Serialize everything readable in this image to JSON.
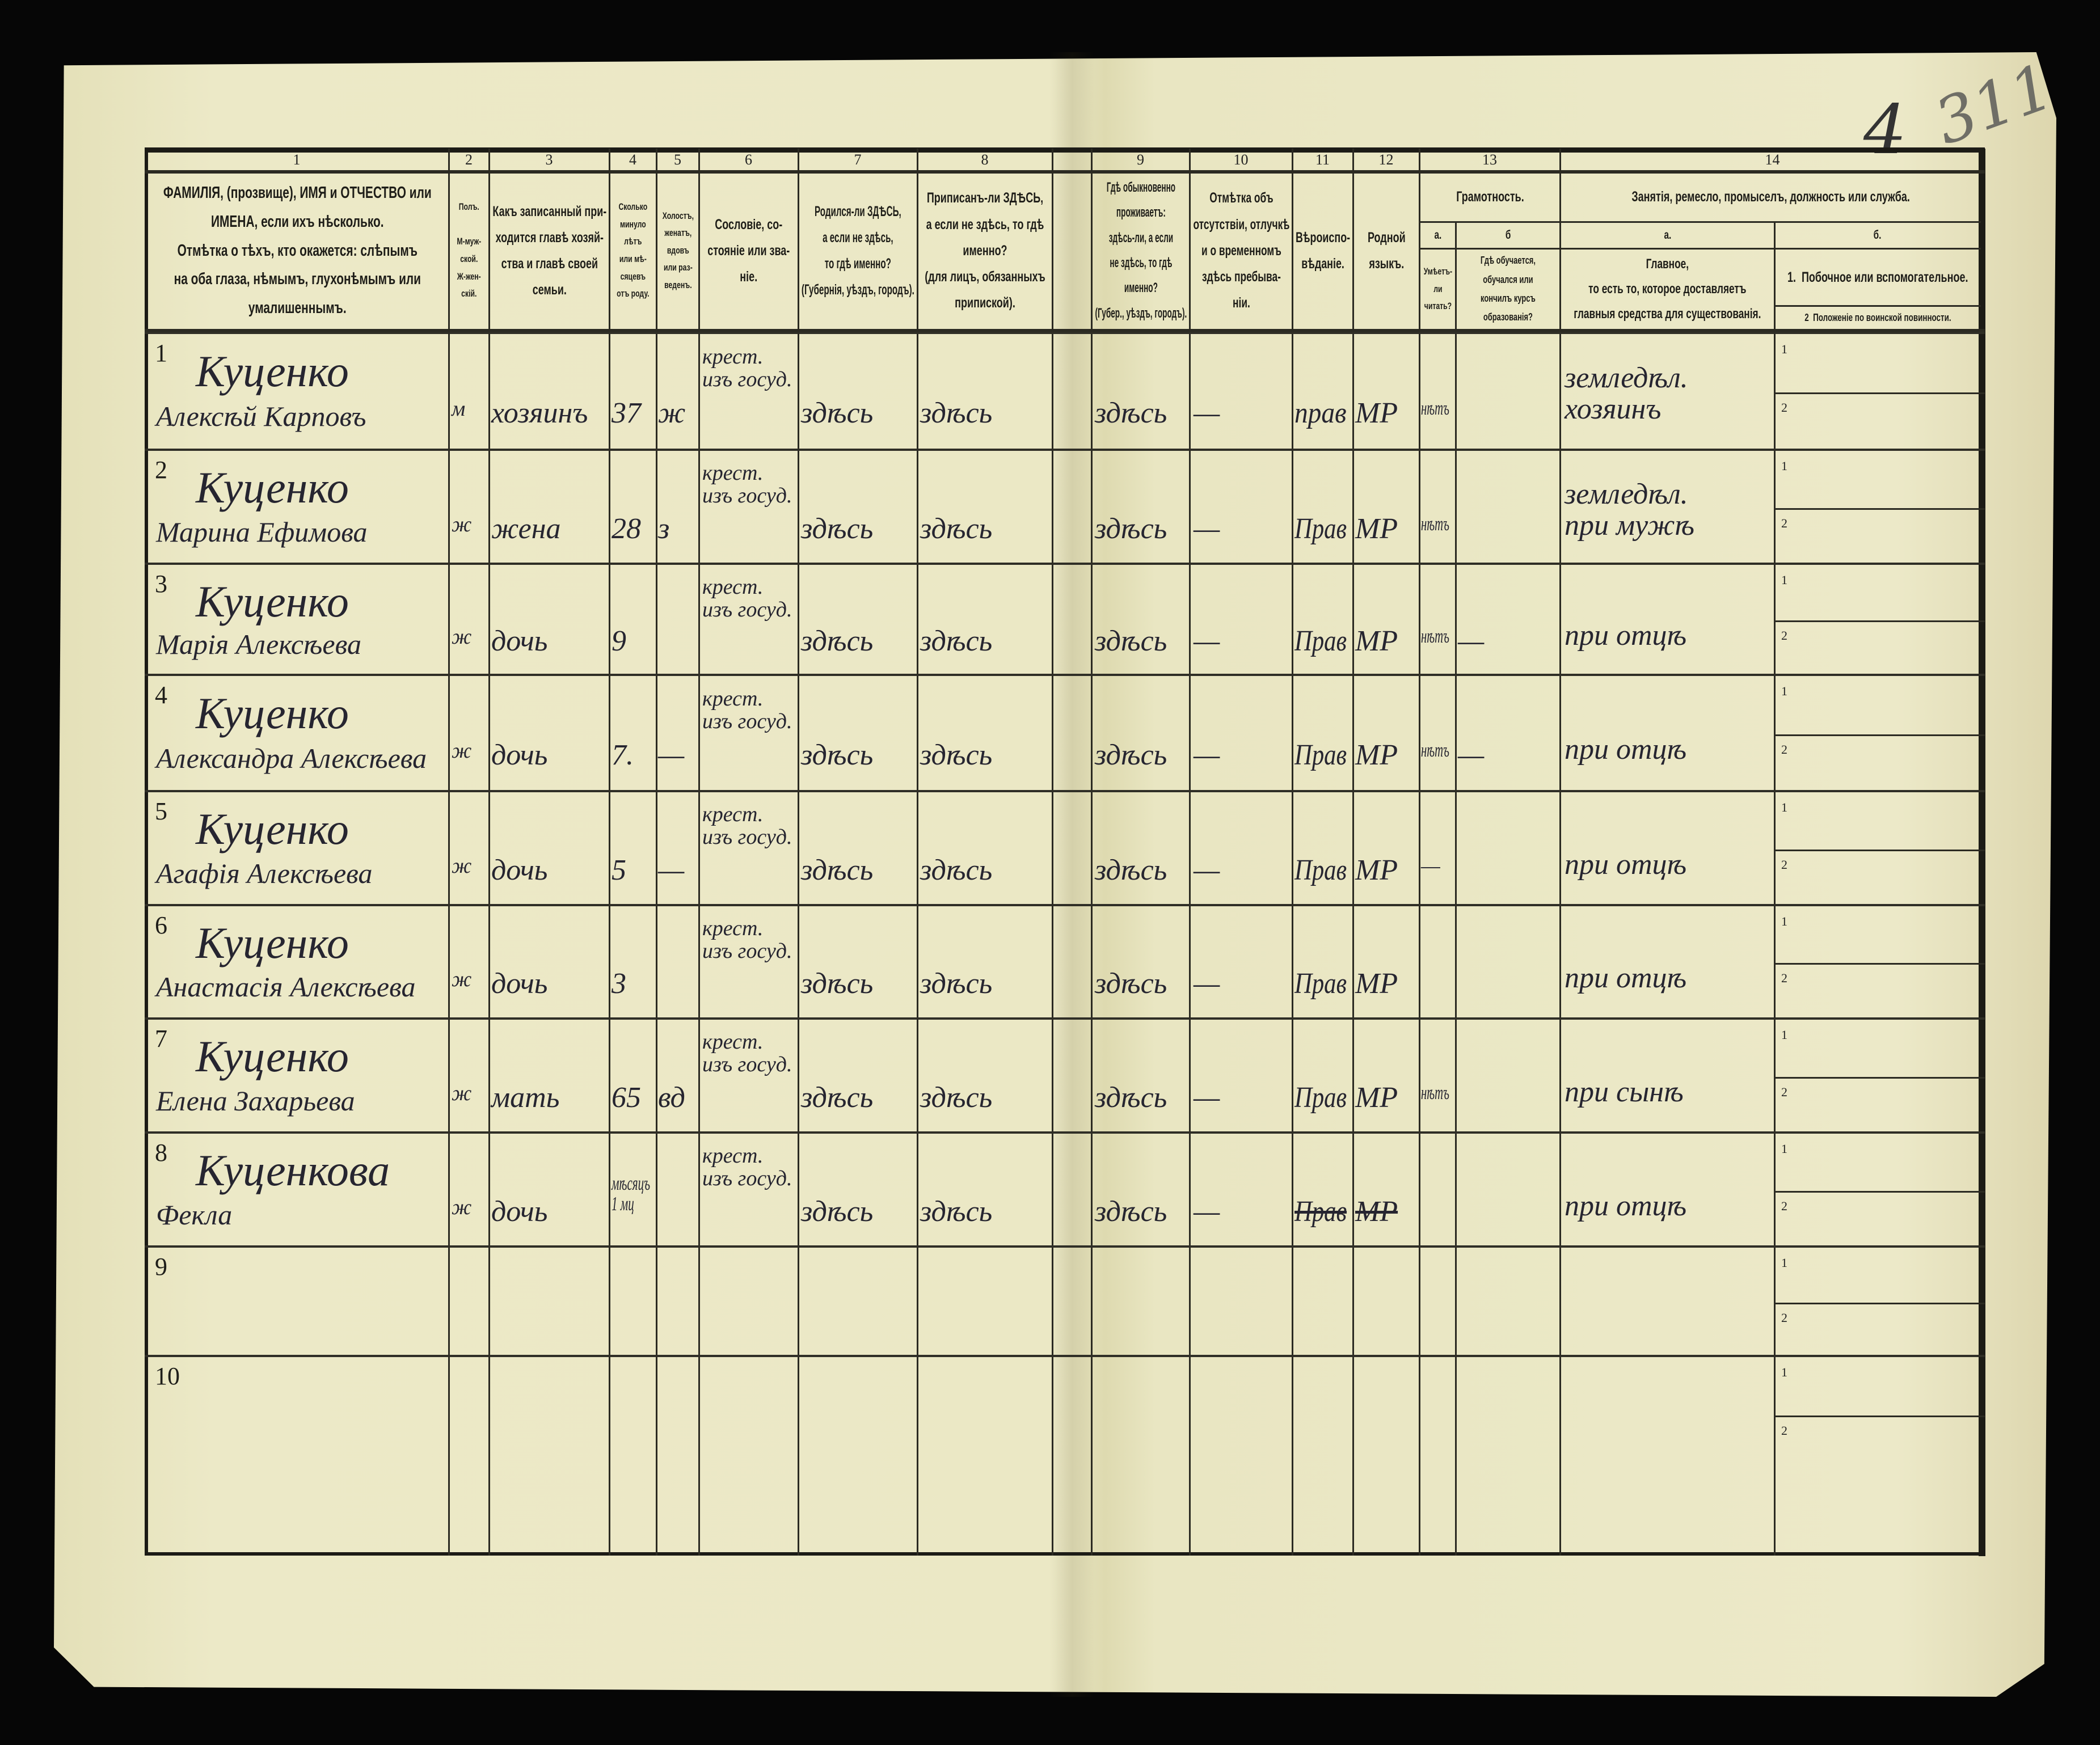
{
  "marks": {
    "sheet_no": "4",
    "archive_no": "311"
  },
  "colors": {
    "paper": "#ebe8c5",
    "ink_print": "#1e1d18",
    "ink_hand": "#262530",
    "background": "#060606"
  },
  "column_numbers": [
    "1",
    "2",
    "3",
    "4",
    "5",
    "6",
    "7",
    "8",
    "9",
    "10",
    "11",
    "12",
    "13",
    "14"
  ],
  "headers": {
    "c1": "ФАМИЛІЯ, (прозвище), ИМЯ и ОТЧЕСТВО или\nИМЕНА, если ихъ нѣсколько.\nОтмѣтка о тѣхъ, кто окажется: слѣпымъ\nна оба глаза, нѣмымъ, глухонѣмымъ или\nумалишеннымъ.",
    "c2": "Полъ.\n\nМ-муж-\nской.\nЖ-жен-\nскій.",
    "c3": "Какъ записанный при-\nходится главѣ хозяй-\nства и главѣ своей\nсемьи.",
    "c4": "Сколько\nминуло\nлѣтъ\nили мѣ-\nсяцевъ\nотъ роду.",
    "c5": "Холостъ,\nженатъ,\nвдовъ\nили раз-\nведенъ.",
    "c6": "Сословіе, со-\nстояніе или зва-\nніе.",
    "c7": "Родился-ли ЗДѢСЬ,\nа если не здѣсь,\nто гдѣ именно?\n(Губернія, уѣздъ, городъ).",
    "c8": "Приписанъ-ли ЗДѢСЬ,\nа если не здѣсь, то гдѣ\nименно?\n(для лицъ, обязанныхъ\nприпиской).",
    "c9": "Гдѣ обыкновенно\nпроживаетъ:\nздѣсь-ли, а если\nне здѣсь, то гдѣ\nименно?\n(Губер., уѣздъ, городъ).",
    "c10": "Отмѣтка объ\nотсутствіи, отлучкѣ\nи о временномъ\nздѣсь пребыва-\nніи.",
    "c11": "Вѣроиспо-\nвѣданіе.",
    "c12": "Родной\nязыкъ.",
    "c13": "Грамотность.",
    "c13a_letter": "а.",
    "c13b_letter": "б",
    "c13a": "Умѣетъ-\nли\nчитать?",
    "c13b": "Гдѣ обучается,\nобучался или\nкончилъ курсъ\nобразованія?",
    "c14": "Занятія, ремесло, промыселъ, должность или служба.",
    "c14a_letter": "а.",
    "c14b_letter": "б.",
    "c14a": "Главное,\nто есть то, которое доставляетъ\nглавныя средства для существованія.",
    "c14b1": "1.  Побочное или вспомогательное.",
    "c14b2": "2  Положеніе по воинской повинности."
  },
  "sub_labels": [
    "1",
    "2"
  ],
  "rows": [
    {
      "num": "1",
      "surname": "Куценко",
      "given": "Алексѣй Карповъ",
      "sex": "м",
      "relation": "хозяинъ",
      "age": "37",
      "marital": "ж",
      "estate": "крест.\nизъ госуд.",
      "born": "здѣсь",
      "registered": "здѣсь",
      "residence": "здѣсь",
      "absence": "—",
      "religion": "прав",
      "language": "МР",
      "literate": "нѣтъ",
      "school": "",
      "occupation": "земледѣл.\nхозяинъ"
    },
    {
      "num": "2",
      "surname": "Куценко",
      "given": "Марина Ефимова",
      "sex": "ж",
      "relation": "жена",
      "age": "28",
      "marital": "з",
      "estate": "крест.\nизъ госуд.",
      "born": "здѣсь",
      "registered": "здѣсь",
      "residence": "здѣсь",
      "absence": "—",
      "religion": "Прав",
      "language": "МР",
      "literate": "нѣтъ",
      "school": "",
      "occupation": "земледѣл.\nпри мужѣ"
    },
    {
      "num": "3",
      "surname": "Куценко",
      "given": "Марія Алексѣева",
      "sex": "ж",
      "relation": "дочь",
      "age": "9",
      "marital": "",
      "estate": "крест.\nизъ госуд.",
      "born": "здѣсь",
      "registered": "здѣсь",
      "residence": "здѣсь",
      "absence": "—",
      "religion": "Прав",
      "language": "МР",
      "literate": "нѣтъ",
      "school": "—",
      "occupation": "при отцѣ"
    },
    {
      "num": "4",
      "surname": "Куценко",
      "given": "Александра Алексѣева",
      "sex": "ж",
      "relation": "дочь",
      "age": "7.",
      "marital": "—",
      "estate": "крест.\nизъ госуд.",
      "born": "здѣсь",
      "registered": "здѣсь",
      "residence": "здѣсь",
      "absence": "—",
      "religion": "Прав",
      "language": "МР",
      "literate": "нѣтъ",
      "school": "—",
      "occupation": "при отцѣ"
    },
    {
      "num": "5",
      "surname": "Куценко",
      "given": "Агафія Алексѣева",
      "sex": "ж",
      "relation": "дочь",
      "age": "5",
      "marital": "—",
      "estate": "крест.\nизъ госуд.",
      "born": "здѣсь",
      "registered": "здѣсь",
      "residence": "здѣсь",
      "absence": "—",
      "religion": "Прав",
      "language": "МР",
      "literate": "—",
      "school": "",
      "occupation": "при отцѣ"
    },
    {
      "num": "6",
      "surname": "Куценко",
      "given": "Анастасія Алексѣева",
      "sex": "ж",
      "relation": "дочь",
      "age": "3",
      "marital": "",
      "estate": "крест.\nизъ госуд.",
      "born": "здѣсь",
      "registered": "здѣсь",
      "residence": "здѣсь",
      "absence": "—",
      "religion": "Прав",
      "language": "МР",
      "literate": "",
      "school": "",
      "occupation": "при отцѣ"
    },
    {
      "num": "7",
      "surname": "Куценко",
      "given": "Елена Захарьева",
      "sex": "ж",
      "relation": "мать",
      "age": "65",
      "marital": "вд",
      "estate": "крест.\nизъ госуд.",
      "born": "здѣсь",
      "registered": "здѣсь",
      "residence": "здѣсь",
      "absence": "—",
      "religion": "Прав",
      "language": "МР",
      "literate": "нѣтъ",
      "school": "",
      "occupation": "при сынѣ"
    },
    {
      "num": "8",
      "surname": "Куценкова",
      "given": "Фекла",
      "sex": "ж",
      "relation": "дочь",
      "age": "мѣсяцъ\n1 мц",
      "marital": "",
      "estate": "крест.\nизъ госуд.",
      "born": "здѣсь",
      "registered": "здѣсь",
      "residence": "здѣсь",
      "absence": "—",
      "religion": "Прав",
      "language": "МР",
      "literate": "",
      "school": "",
      "occupation": "при отцѣ"
    },
    {
      "num": "9"
    },
    {
      "num": "10"
    }
  ]
}
